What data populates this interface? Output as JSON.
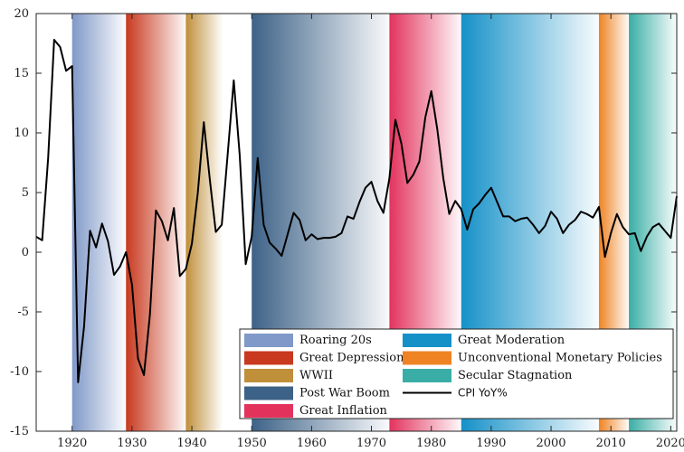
{
  "chart_data": {
    "type": "line",
    "title": "",
    "xlabel": "",
    "ylabel": "",
    "xlim": [
      1914,
      2021
    ],
    "ylim": [
      -15,
      20
    ],
    "xticks": [
      1920,
      1930,
      1940,
      1950,
      1960,
      1970,
      1980,
      1990,
      2000,
      2010,
      2020
    ],
    "yticks": [
      20,
      15,
      10,
      5,
      0,
      -5,
      -10,
      -15
    ],
    "grid": false,
    "legend_placement": "bottom-right",
    "eras": [
      {
        "name": "Roaring 20s",
        "start": 1920,
        "end": 1929,
        "color": "#8099c8"
      },
      {
        "name": "Great Depression",
        "start": 1929,
        "end": 1939,
        "color": "#c8391f"
      },
      {
        "name": "WWII",
        "start": 1939,
        "end": 1945,
        "color": "#bf8f3a"
      },
      {
        "name": "Post War Boom",
        "start": 1950,
        "end": 1973,
        "color": "#3d6287"
      },
      {
        "name": "Great Inflation",
        "start": 1973,
        "end": 1985,
        "color": "#e3335d"
      },
      {
        "name": "Great Moderation",
        "start": 1985,
        "end": 2008,
        "color": "#1591c8"
      },
      {
        "name": "Unconventional Monetary Policies",
        "start": 2008,
        "end": 2013,
        "color": "#ef8323"
      },
      {
        "name": "Secular Stagnation",
        "start": 2013,
        "end": 2021,
        "color": "#3aaea6"
      }
    ],
    "series": [
      {
        "name": "CPI YoY%",
        "color": "#000000",
        "x": [
          1914,
          1915,
          1916,
          1917,
          1918,
          1919,
          1920,
          1921,
          1922,
          1923,
          1924,
          1925,
          1926,
          1927,
          1928,
          1929,
          1930,
          1931,
          1932,
          1933,
          1934,
          1935,
          1936,
          1937,
          1938,
          1939,
          1940,
          1941,
          1942,
          1943,
          1944,
          1945,
          1946,
          1947,
          1948,
          1949,
          1950,
          1951,
          1952,
          1953,
          1954,
          1955,
          1956,
          1957,
          1958,
          1959,
          1960,
          1961,
          1962,
          1963,
          1964,
          1965,
          1966,
          1967,
          1968,
          1969,
          1970,
          1971,
          1972,
          1973,
          1974,
          1975,
          1976,
          1977,
          1978,
          1979,
          1980,
          1981,
          1982,
          1983,
          1984,
          1985,
          1986,
          1987,
          1988,
          1989,
          1990,
          1991,
          1992,
          1993,
          1994,
          1995,
          1996,
          1997,
          1998,
          1999,
          2000,
          2001,
          2002,
          2003,
          2004,
          2005,
          2006,
          2007,
          2008,
          2009,
          2010,
          2011,
          2012,
          2013,
          2014,
          2015,
          2016,
          2017,
          2018,
          2019,
          2020,
          2021
        ],
        "values": [
          1.3,
          1.0,
          7.9,
          17.8,
          17.2,
          15.2,
          15.6,
          -10.9,
          -6.2,
          1.8,
          0.4,
          2.4,
          0.9,
          -1.9,
          -1.2,
          0.0,
          -2.7,
          -8.9,
          -10.3,
          -5.2,
          3.5,
          2.6,
          1.0,
          3.7,
          -2.0,
          -1.4,
          0.7,
          5.0,
          10.9,
          6.1,
          1.7,
          2.3,
          8.3,
          14.4,
          8.1,
          -1.0,
          1.3,
          7.9,
          2.3,
          0.8,
          0.3,
          -0.3,
          1.5,
          3.3,
          2.7,
          1.0,
          1.5,
          1.1,
          1.2,
          1.2,
          1.3,
          1.6,
          3.0,
          2.8,
          4.2,
          5.4,
          5.9,
          4.3,
          3.3,
          6.2,
          11.1,
          9.1,
          5.8,
          6.5,
          7.6,
          11.3,
          13.5,
          10.3,
          6.2,
          3.2,
          4.3,
          3.6,
          1.9,
          3.6,
          4.1,
          4.8,
          5.4,
          4.2,
          3.0,
          3.0,
          2.6,
          2.8,
          2.9,
          2.3,
          1.6,
          2.2,
          3.4,
          2.8,
          1.6,
          2.3,
          2.7,
          3.4,
          3.2,
          2.9,
          3.8,
          -0.4,
          1.6,
          3.2,
          2.1,
          1.5,
          1.6,
          0.1,
          1.3,
          2.1,
          2.4,
          1.8,
          1.2,
          4.7
        ]
      }
    ]
  }
}
